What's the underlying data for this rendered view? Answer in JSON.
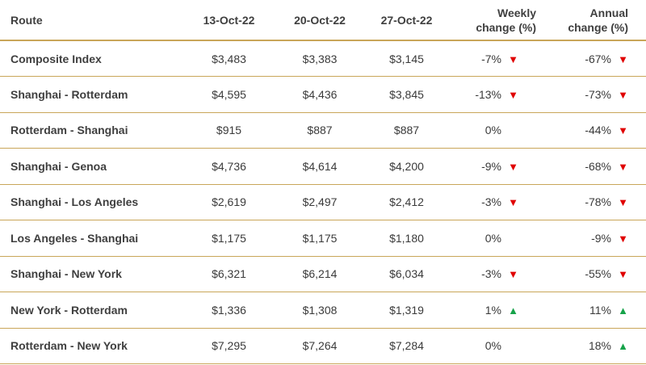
{
  "colors": {
    "rule": "#c9a659",
    "down": "#e00000",
    "up": "#17a34a",
    "text": "#3a3a3a"
  },
  "table": {
    "headers": {
      "route": "Route",
      "d1": "13-Oct-22",
      "d2": "20-Oct-22",
      "d3": "27-Oct-22",
      "weekly_1": "Weekly",
      "weekly_2": "change (%)",
      "annual_1": "Annual",
      "annual_2": "change (%)"
    },
    "rows": [
      {
        "route": "Composite Index",
        "d1": "$3,483",
        "d2": "$3,383",
        "d3": "$3,145",
        "weekly": "-7%",
        "weekly_dir": "down",
        "annual": "-67%",
        "annual_dir": "down"
      },
      {
        "route": "Shanghai - Rotterdam",
        "d1": "$4,595",
        "d2": "$4,436",
        "d3": "$3,845",
        "weekly": "-13%",
        "weekly_dir": "down",
        "annual": "-73%",
        "annual_dir": "down"
      },
      {
        "route": "Rotterdam - Shanghai",
        "d1": "$915",
        "d2": "$887",
        "d3": "$887",
        "weekly": "0%",
        "weekly_dir": "none",
        "annual": "-44%",
        "annual_dir": "down"
      },
      {
        "route": "Shanghai - Genoa",
        "d1": "$4,736",
        "d2": "$4,614",
        "d3": "$4,200",
        "weekly": "-9%",
        "weekly_dir": "down",
        "annual": "-68%",
        "annual_dir": "down"
      },
      {
        "route": "Shanghai - Los Angeles",
        "d1": "$2,619",
        "d2": "$2,497",
        "d3": "$2,412",
        "weekly": "-3%",
        "weekly_dir": "down",
        "annual": "-78%",
        "annual_dir": "down"
      },
      {
        "route": "Los Angeles - Shanghai",
        "d1": "$1,175",
        "d2": "$1,175",
        "d3": "$1,180",
        "weekly": "0%",
        "weekly_dir": "none",
        "annual": "-9%",
        "annual_dir": "down"
      },
      {
        "route": "Shanghai - New York",
        "d1": "$6,321",
        "d2": "$6,214",
        "d3": "$6,034",
        "weekly": "-3%",
        "weekly_dir": "down",
        "annual": "-55%",
        "annual_dir": "down"
      },
      {
        "route": "New York - Rotterdam",
        "d1": "$1,336",
        "d2": "$1,308",
        "d3": "$1,319",
        "weekly": "1%",
        "weekly_dir": "up",
        "annual": "11%",
        "annual_dir": "up"
      },
      {
        "route": "Rotterdam - New York",
        "d1": "$7,295",
        "d2": "$7,264",
        "d3": "$7,284",
        "weekly": "0%",
        "weekly_dir": "none",
        "annual": "18%",
        "annual_dir": "up"
      }
    ]
  }
}
